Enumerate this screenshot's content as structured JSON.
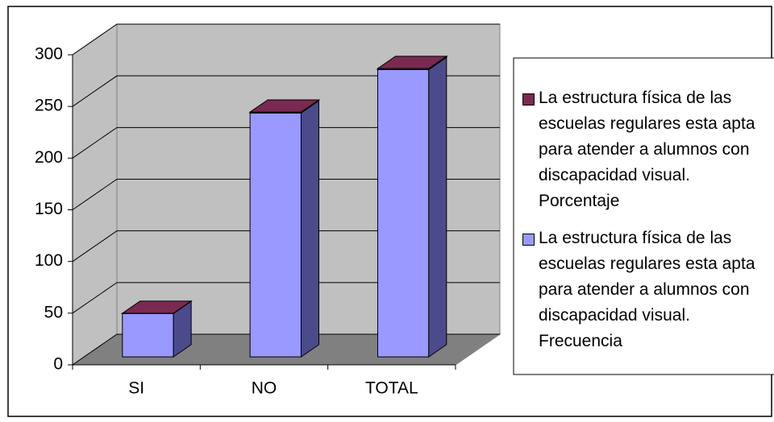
{
  "chart_data": {
    "type": "bar3d_stacked",
    "categories": [
      "SI",
      "NO",
      "TOTAL"
    ],
    "series": [
      {
        "name": "La estructura física de las escuelas regulares esta apta para atender a alumnos con discapacidad visual. Frecuencia",
        "color": "#9999ff",
        "values": [
          42,
          236,
          278
        ]
      },
      {
        "name": "La estructura física de las escuelas regulares esta apta para atender a alumnos con discapacidad visual. Porcentaje",
        "color": "#7a2a50",
        "values": [
          0.15,
          0.85,
          1
        ]
      }
    ],
    "legend_order": [
      1,
      0
    ],
    "ylim": [
      0,
      300
    ],
    "yticks": [
      0,
      50,
      100,
      150,
      200,
      250,
      300
    ],
    "grid": true
  }
}
